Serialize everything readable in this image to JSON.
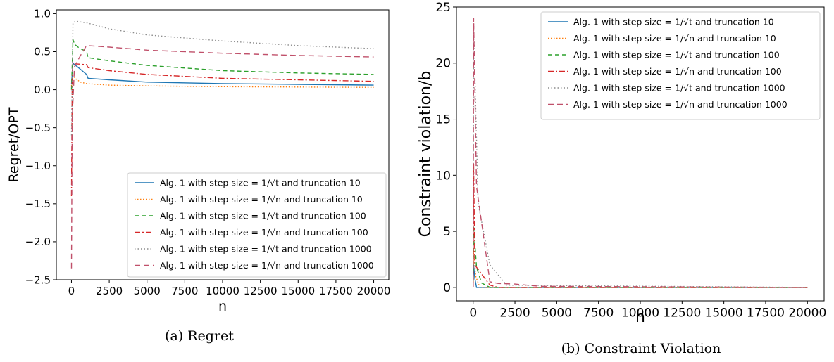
{
  "chart_data": [
    {
      "type": "line",
      "caption": "(a) Regret",
      "xlabel": "n",
      "ylabel": "Regret/OPT",
      "xlim": [
        -1000,
        21000
      ],
      "ylim": [
        -2.5,
        1.05
      ],
      "xticks": [
        "0",
        "2500",
        "5000",
        "7500",
        "10000",
        "12500",
        "15000",
        "17500",
        "20000"
      ],
      "yticks": [
        "−2.5",
        "−2.0",
        "−1.5",
        "−1.0",
        "−0.5",
        "0.0",
        "0.5",
        "1.0"
      ],
      "legend_position": "lower-right",
      "series": [
        {
          "name": "Alg. 1 with step size = 1/√t and truncation 10",
          "color": "#1f77b4",
          "dash": "",
          "x": [
            0,
            100,
            200,
            400,
            700,
            1000,
            1100,
            2500,
            5000,
            10000,
            15000,
            20000
          ],
          "y": [
            0.07,
            0.35,
            0.33,
            0.3,
            0.25,
            0.2,
            0.15,
            0.13,
            0.1,
            0.08,
            0.07,
            0.06
          ]
        },
        {
          "name": "Alg. 1 with step size = 1/√n and truncation 10",
          "color": "#ff7f0e",
          "dash": "1.5,2.5",
          "x": [
            0,
            100,
            300,
            600,
            1000,
            2500,
            5000,
            10000,
            15000,
            20000
          ],
          "y": [
            0.05,
            0.18,
            0.14,
            0.1,
            0.08,
            0.06,
            0.05,
            0.04,
            0.035,
            0.03
          ]
        },
        {
          "name": "Alg. 1 with step size = 1/√t and truncation 100",
          "color": "#2ca02c",
          "dash": "6,4",
          "x": [
            0,
            100,
            200,
            500,
            1000,
            1100,
            2500,
            5000,
            10000,
            15000,
            20000
          ],
          "y": [
            0.0,
            0.66,
            0.6,
            0.55,
            0.5,
            0.42,
            0.38,
            0.32,
            0.25,
            0.22,
            0.2
          ]
        },
        {
          "name": "Alg. 1 with step size = 1/√n and truncation 100",
          "color": "#d62728",
          "dash": "8,3,2,3",
          "x": [
            0,
            50,
            100,
            200,
            1000,
            1100,
            2500,
            5000,
            10000,
            15000,
            20000
          ],
          "y": [
            -1.4,
            0.1,
            0.35,
            0.34,
            0.33,
            0.29,
            0.25,
            0.2,
            0.15,
            0.13,
            0.11
          ]
        },
        {
          "name": "Alg. 1 with step size = 1/√t and truncation 1000",
          "color": "#8c8c8c",
          "dash": "1.5,3",
          "x": [
            0,
            100,
            300,
            600,
            1000,
            2500,
            5000,
            10000,
            15000,
            20000
          ],
          "y": [
            -0.6,
            0.88,
            0.9,
            0.89,
            0.88,
            0.8,
            0.72,
            0.64,
            0.58,
            0.54
          ]
        },
        {
          "name": "Alg. 1 with step size = 1/√n and truncation 1000",
          "color": "#c0506a",
          "dash": "8,5",
          "x": [
            0,
            50,
            200,
            600,
            1000,
            2500,
            5000,
            10000,
            15000,
            20000
          ],
          "y": [
            -2.35,
            -0.4,
            0.3,
            0.45,
            0.58,
            0.56,
            0.52,
            0.48,
            0.45,
            0.43
          ]
        }
      ]
    },
    {
      "type": "line",
      "caption": "(b) Constraint Violation",
      "xlabel": "n",
      "ylabel": "Constraint violation/b",
      "xlim": [
        -1000,
        21000
      ],
      "ylim": [
        -1.2,
        25
      ],
      "xticks": [
        "0",
        "2500",
        "5000",
        "7500",
        "10000",
        "12500",
        "15000",
        "17500",
        "20000"
      ],
      "yticks": [
        "0",
        "5",
        "10",
        "15",
        "20",
        "25"
      ],
      "legend_position": "upper-right",
      "series": [
        {
          "name": "Alg. 1 with step size = 1/√t and truncation 10",
          "color": "#1f77b4",
          "dash": "",
          "x": [
            0,
            30,
            100,
            200,
            20000
          ],
          "y": [
            0.0,
            2.0,
            0.8,
            0.0,
            0.0
          ]
        },
        {
          "name": "Alg. 1 with step size = 1/√n and truncation 10",
          "color": "#ff7f0e",
          "dash": "1.5,2.5",
          "x": [
            0,
            30,
            150,
            400,
            20000
          ],
          "y": [
            0.0,
            3.5,
            1.0,
            0.0,
            0.0
          ]
        },
        {
          "name": "Alg. 1 with step size = 1/√t and truncation 100",
          "color": "#2ca02c",
          "dash": "6,4",
          "x": [
            0,
            30,
            200,
            500,
            1000,
            20000
          ],
          "y": [
            0.0,
            5.5,
            1.8,
            0.4,
            0.0,
            0.0
          ]
        },
        {
          "name": "Alg. 1 with step size = 1/√n and truncation 100",
          "color": "#d62728",
          "dash": "8,3,2,3",
          "x": [
            0,
            30,
            100,
            500,
            1000,
            1500,
            20000
          ],
          "y": [
            0.0,
            11.0,
            2.0,
            1.2,
            0.2,
            0.0,
            0.0
          ]
        },
        {
          "name": "Alg. 1 with step size = 1/√t and truncation 1000",
          "color": "#8c8c8c",
          "dash": "1.5,3",
          "x": [
            0,
            30,
            300,
            1000,
            2000,
            20000
          ],
          "y": [
            0.0,
            23.5,
            7.5,
            2.0,
            0.2,
            0.0
          ]
        },
        {
          "name": "Alg. 1 with step size = 1/√n and truncation 1000",
          "color": "#c0506a",
          "dash": "8,5",
          "x": [
            0,
            30,
            200,
            1000,
            1500,
            2500,
            4000,
            20000
          ],
          "y": [
            0.0,
            24.0,
            9.0,
            0.5,
            0.35,
            0.3,
            0.1,
            0.0
          ]
        }
      ]
    }
  ]
}
